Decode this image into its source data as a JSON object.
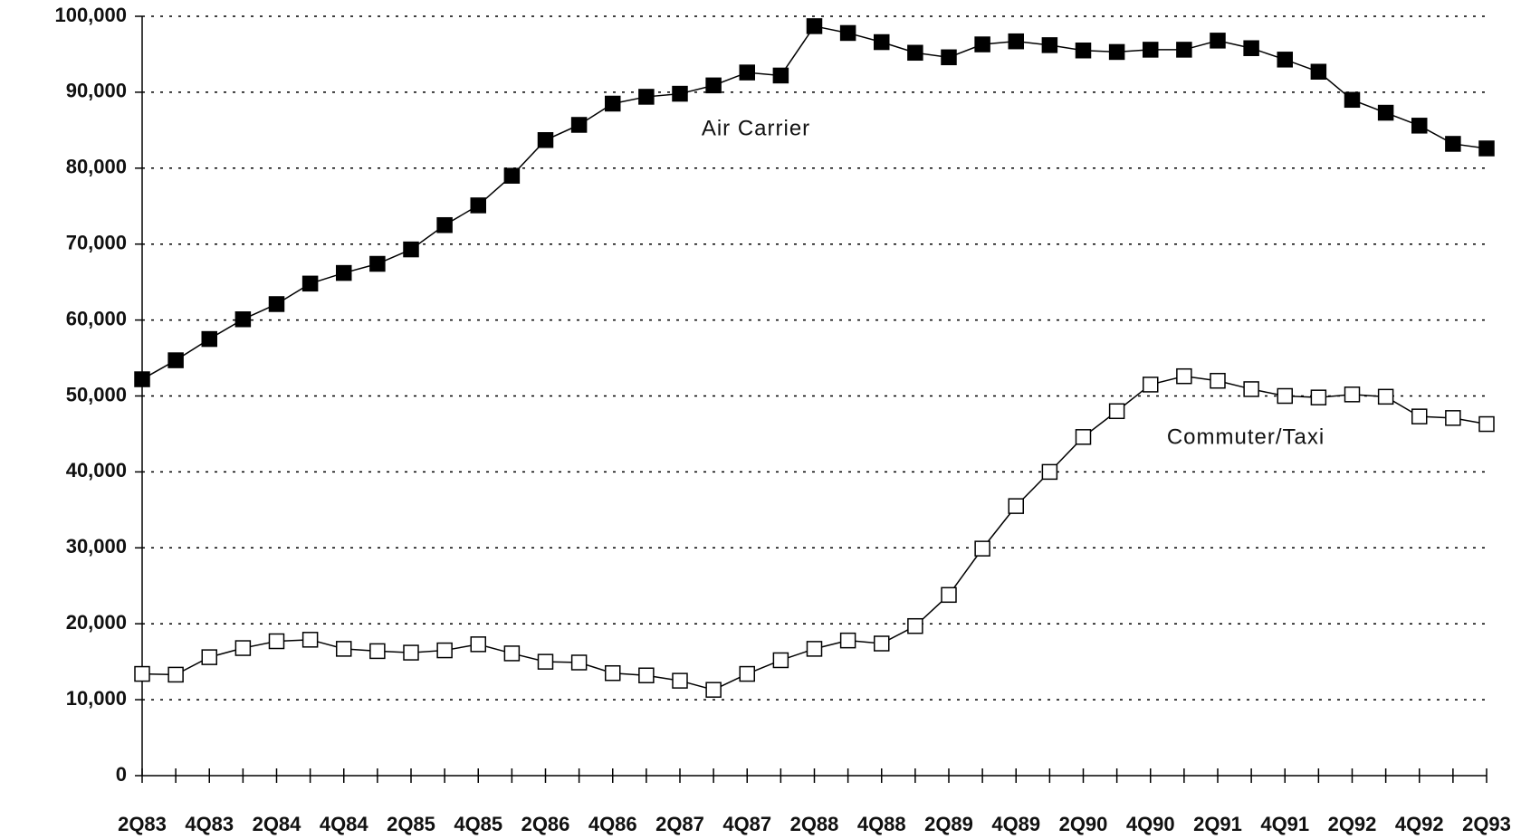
{
  "chart_data": {
    "type": "line",
    "categories": [
      "2Q83",
      null,
      "4Q83",
      null,
      "2Q84",
      null,
      "4Q84",
      null,
      "2Q85",
      null,
      "4Q85",
      null,
      "2Q86",
      null,
      "4Q86",
      null,
      "2Q87",
      null,
      "4Q87",
      null,
      "2Q88",
      null,
      "4Q88",
      null,
      "2Q89",
      null,
      "4Q89",
      null,
      "2Q90",
      null,
      "4Q90",
      null,
      "2Q91",
      null,
      "4Q91",
      null,
      "2Q92",
      null,
      "4Q92",
      null,
      "2Q93"
    ],
    "series": [
      {
        "name": "Air Carrier",
        "color": "#000000",
        "marker_fill": "#000000",
        "values": [
          52200,
          54700,
          57500,
          60100,
          62100,
          64800,
          66200,
          67400,
          69300,
          72500,
          75100,
          79000,
          83700,
          85700,
          88500,
          89400,
          89800,
          90900,
          92600,
          92200,
          98700,
          97800,
          96600,
          95200,
          94600,
          96300,
          96700,
          96200,
          95500,
          95300,
          95600,
          95600,
          96800,
          95800,
          94300,
          92700,
          89000,
          87300,
          85600,
          83200,
          82600
        ]
      },
      {
        "name": "Commuter/Taxi",
        "color": "#000000",
        "marker_fill": "#ffffff",
        "values": [
          13400,
          13300,
          15600,
          16800,
          17700,
          17900,
          16700,
          16400,
          16200,
          16500,
          17300,
          16100,
          15000,
          14900,
          13500,
          13200,
          12500,
          11300,
          13400,
          15200,
          16700,
          17800,
          17400,
          19700,
          23800,
          29900,
          35500,
          40000,
          44600,
          48000,
          51500,
          52600,
          52000,
          50900,
          50000,
          49800,
          50200,
          49900,
          47300,
          47100,
          46300
        ]
      }
    ],
    "ylim": [
      0,
      100000
    ],
    "yticks": [
      0,
      {
        "value": 10000,
        "label": "10,000"
      },
      {
        "value": 20000,
        "label": "20,000"
      },
      {
        "value": 30000,
        "label": "30,000"
      },
      {
        "value": 40000,
        "label": "40,000"
      },
      {
        "value": 50000,
        "label": "50,000"
      },
      {
        "value": 60000,
        "label": "60,000"
      },
      {
        "value": 70000,
        "label": "70,000"
      },
      {
        "value": 80000,
        "label": "80,000"
      },
      {
        "value": 90000,
        "label": "90,000"
      },
      {
        "value": 100000,
        "label": "100,000"
      }
    ],
    "grid": true
  }
}
